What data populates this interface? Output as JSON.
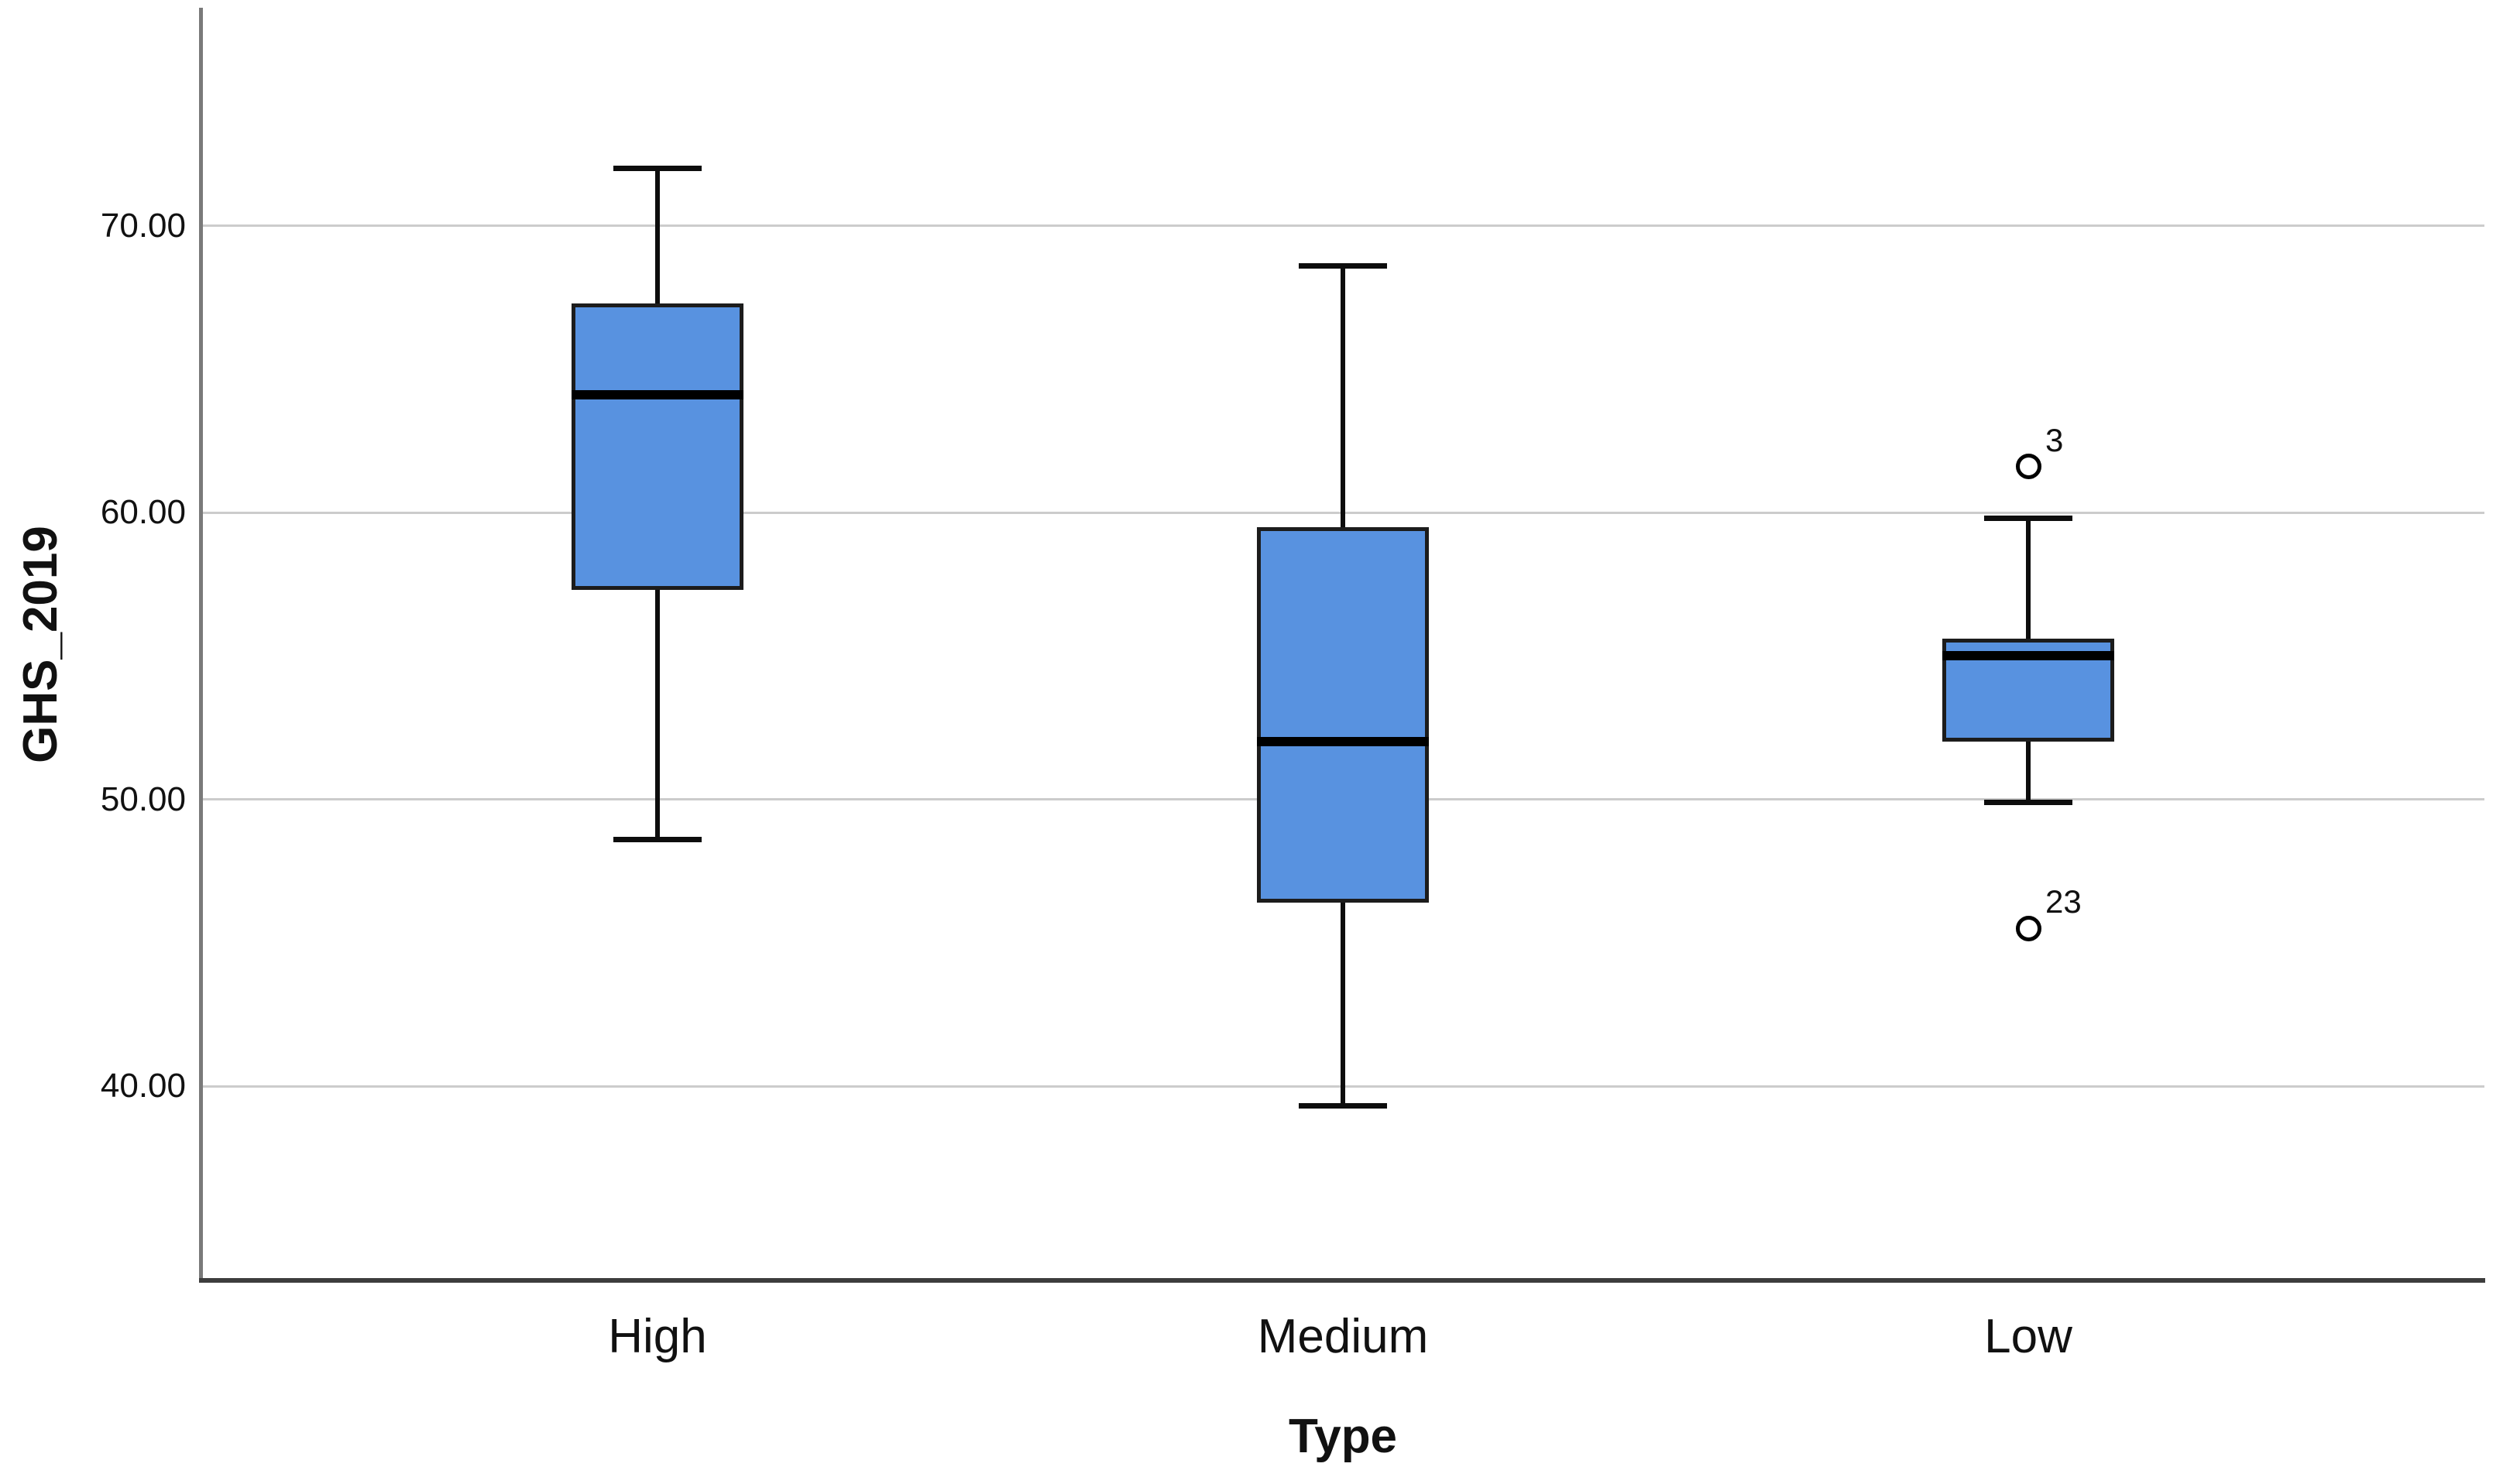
{
  "figure": {
    "background": "#ffffff"
  },
  "chart_data": {
    "type": "box",
    "title": "",
    "xlabel": "Type",
    "ylabel": "GHS_2019",
    "categories": [
      "High",
      "Medium",
      "Low"
    ],
    "ylim": [
      33.2,
      77.6
    ],
    "grid": "horizontal-only",
    "legend": "none",
    "yticks": [
      {
        "value": 40,
        "label": "40.00"
      },
      {
        "value": 50,
        "label": "50.00"
      },
      {
        "value": 60,
        "label": "60.00"
      },
      {
        "value": 70,
        "label": "70.00"
      }
    ],
    "boxes": [
      {
        "category": "High",
        "whisker_low": 48.6,
        "q1": 57.3,
        "median": 64.1,
        "q3": 67.3,
        "whisker_high": 72.0,
        "outliers": []
      },
      {
        "category": "Medium",
        "whisker_low": 39.3,
        "q1": 46.4,
        "median": 52.0,
        "q3": 59.5,
        "whisker_high": 68.6,
        "outliers": []
      },
      {
        "category": "Low",
        "whisker_low": 49.9,
        "q1": 52.0,
        "median": 55.0,
        "q3": 55.6,
        "whisker_high": 59.8,
        "outliers": [
          {
            "value": 61.6,
            "label": "3"
          },
          {
            "value": 45.5,
            "label": "23"
          }
        ]
      }
    ],
    "colors": {
      "box_fill": "#5892E0",
      "box_border": "#1c1c1c",
      "median": "#000000",
      "whisker": "#0d0d0d",
      "outlier_stroke": "#000000",
      "outlier_fill": "#ffffff",
      "gridline": "#cccccc",
      "axis_y": "#7a7a7a",
      "axis_x": "#3d3d3d",
      "text": "#111111"
    }
  }
}
